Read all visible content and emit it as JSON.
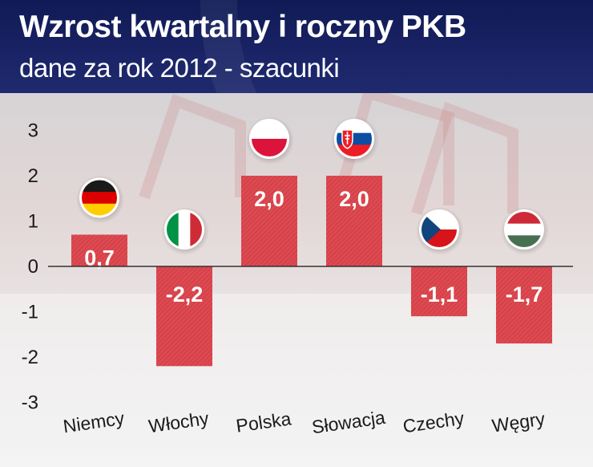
{
  "header": {
    "title": "Wzrost kwartalny i roczny PKB",
    "subtitle": "dane za rok 2012 - szacunki"
  },
  "colors": {
    "header_bg": "#1a2466",
    "bar": "#d9424a",
    "axis": "#333333"
  },
  "chart_data": {
    "type": "bar",
    "title": "Wzrost kwartalny i roczny PKB",
    "subtitle": "dane za rok 2012 - szacunki",
    "categories": [
      "Niemcy",
      "Włochy",
      "Polska",
      "Słowacja",
      "Czechy",
      "Węgry"
    ],
    "values": [
      0.7,
      -2.2,
      2.0,
      2.0,
      -1.1,
      -1.7
    ],
    "value_labels": [
      "0,7",
      "-2,2",
      "2,0",
      "2,0",
      "-1,1",
      "-1,7"
    ],
    "flags": [
      "germany-flag-icon",
      "italy-flag-icon",
      "poland-flag-icon",
      "slovakia-flag-icon",
      "czech-flag-icon",
      "hungary-flag-icon"
    ],
    "yticks": [
      3,
      2,
      1,
      0,
      -1,
      -2,
      -3
    ],
    "ylim": [
      -3,
      3
    ],
    "xlabel": "",
    "ylabel": "",
    "grid": false,
    "legend": "none"
  }
}
